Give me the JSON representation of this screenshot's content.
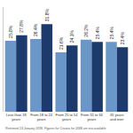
{
  "chart_data": {
    "type": "bar",
    "categories": [
      "Less than 18\nyears",
      "From 18 to 24\nyears",
      "From 25 to 54\nyears",
      "From 55 to 64\nyears",
      "65 years\nand over"
    ],
    "series": [
      {
        "color": "#6b96c8",
        "values": [
          25.8,
          26.4,
          21.6,
          26.2,
          25.4
        ],
        "value_labels": [
          "25.8%",
          "26.4%",
          "21.6%",
          "26.2%",
          "25.4%"
        ]
      },
      {
        "color": "#1c3a6b",
        "values": [
          27.8,
          31.8,
          24.1,
          25.4,
          23.4
        ],
        "value_labels": [
          "27.8%",
          "31.8%",
          "24.1%",
          "25.4%",
          "23.4%"
        ]
      }
    ],
    "ylim": [
      0,
      38
    ],
    "yticks": [],
    "grid": false,
    "data_labels": true,
    "tick_labels": "x",
    "annotations": [
      "Retrieved 13 January 2016. Figures for Croatia for 2008 are not available."
    ]
  }
}
